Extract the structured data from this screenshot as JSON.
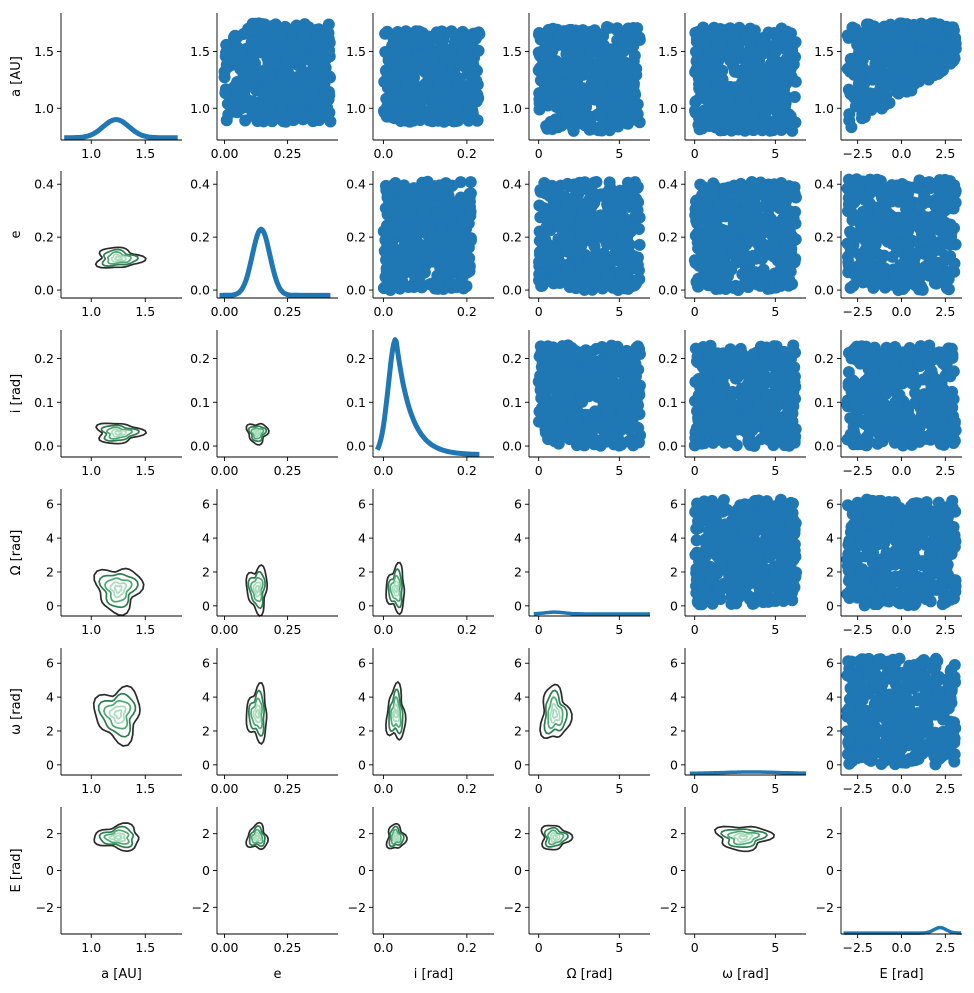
{
  "figure": {
    "type": "pairplot",
    "scatter_color": "#1f77b4",
    "kde_colors": [
      "#2b2b2b",
      "#2e7d4f",
      "#4da872",
      "#a8dcbc"
    ],
    "axis_color": "#000000"
  },
  "chart_data": {
    "type": "scatter",
    "variables": [
      {
        "label": "a [AU]",
        "range": [
          0.72,
          1.84
        ],
        "ticks": [
          1.0,
          1.5
        ],
        "tick_labels": [
          "1.0",
          "1.5"
        ]
      },
      {
        "label": "e",
        "range": [
          -0.03,
          0.45
        ],
        "ticks": [
          0.0,
          0.2,
          0.4
        ],
        "tick_labels": [
          "0.0",
          "0.2",
          "0.4"
        ],
        "x_range": [
          -0.03,
          0.45
        ],
        "x_ticks": [
          0.0,
          0.25
        ],
        "x_tick_labels": [
          "0.00",
          "0.25"
        ]
      },
      {
        "label": "i [rad]",
        "range": [
          -0.025,
          0.265
        ],
        "ticks": [
          0.0,
          0.1,
          0.2
        ],
        "tick_labels": [
          "0.0",
          "0.1",
          "0.2"
        ],
        "x_ticks": [
          0.0,
          0.2
        ],
        "x_tick_labels": [
          "0.0",
          "0.2"
        ]
      },
      {
        "label": "Ω [rad]",
        "range": [
          -0.6,
          6.9
        ],
        "ticks": [
          0,
          2,
          4,
          6
        ],
        "tick_labels": [
          "0",
          "2",
          "4",
          "6"
        ],
        "x_ticks": [
          0,
          5
        ],
        "x_tick_labels": [
          "0",
          "5"
        ]
      },
      {
        "label": "ω [rad]",
        "range": [
          -0.6,
          6.9
        ],
        "ticks": [
          0,
          2,
          4,
          6
        ],
        "tick_labels": [
          "0",
          "2",
          "4",
          "6"
        ],
        "x_ticks": [
          0,
          5
        ],
        "x_tick_labels": [
          "0",
          "5"
        ]
      },
      {
        "label": "E [rad]",
        "range": [
          -3.45,
          3.45
        ],
        "ticks": [
          -2,
          0,
          2
        ],
        "tick_labels": [
          "−2",
          "0",
          "2"
        ],
        "x_ticks": [
          -2.5,
          0.0,
          2.5
        ],
        "x_tick_labels": [
          "−2.5",
          "0.0",
          "2.5"
        ]
      }
    ],
    "upper": "scatter",
    "diagonal": "kde_line",
    "lower": "kde_contour",
    "diagonal_peaks": [
      {
        "variable": "a [AU]",
        "peak_x": 1.23
      },
      {
        "variable": "e",
        "peak_x": 0.15
      },
      {
        "variable": "i [rad]",
        "peak_x": 0.03
      },
      {
        "variable": "Ω [rad]",
        "peak_x": 1.0
      },
      {
        "variable": "ω [rad]",
        "peak_x": 3.5
      },
      {
        "variable": "E [rad]",
        "peak_x": 2.2
      }
    ],
    "grid": false,
    "legend": "none"
  }
}
